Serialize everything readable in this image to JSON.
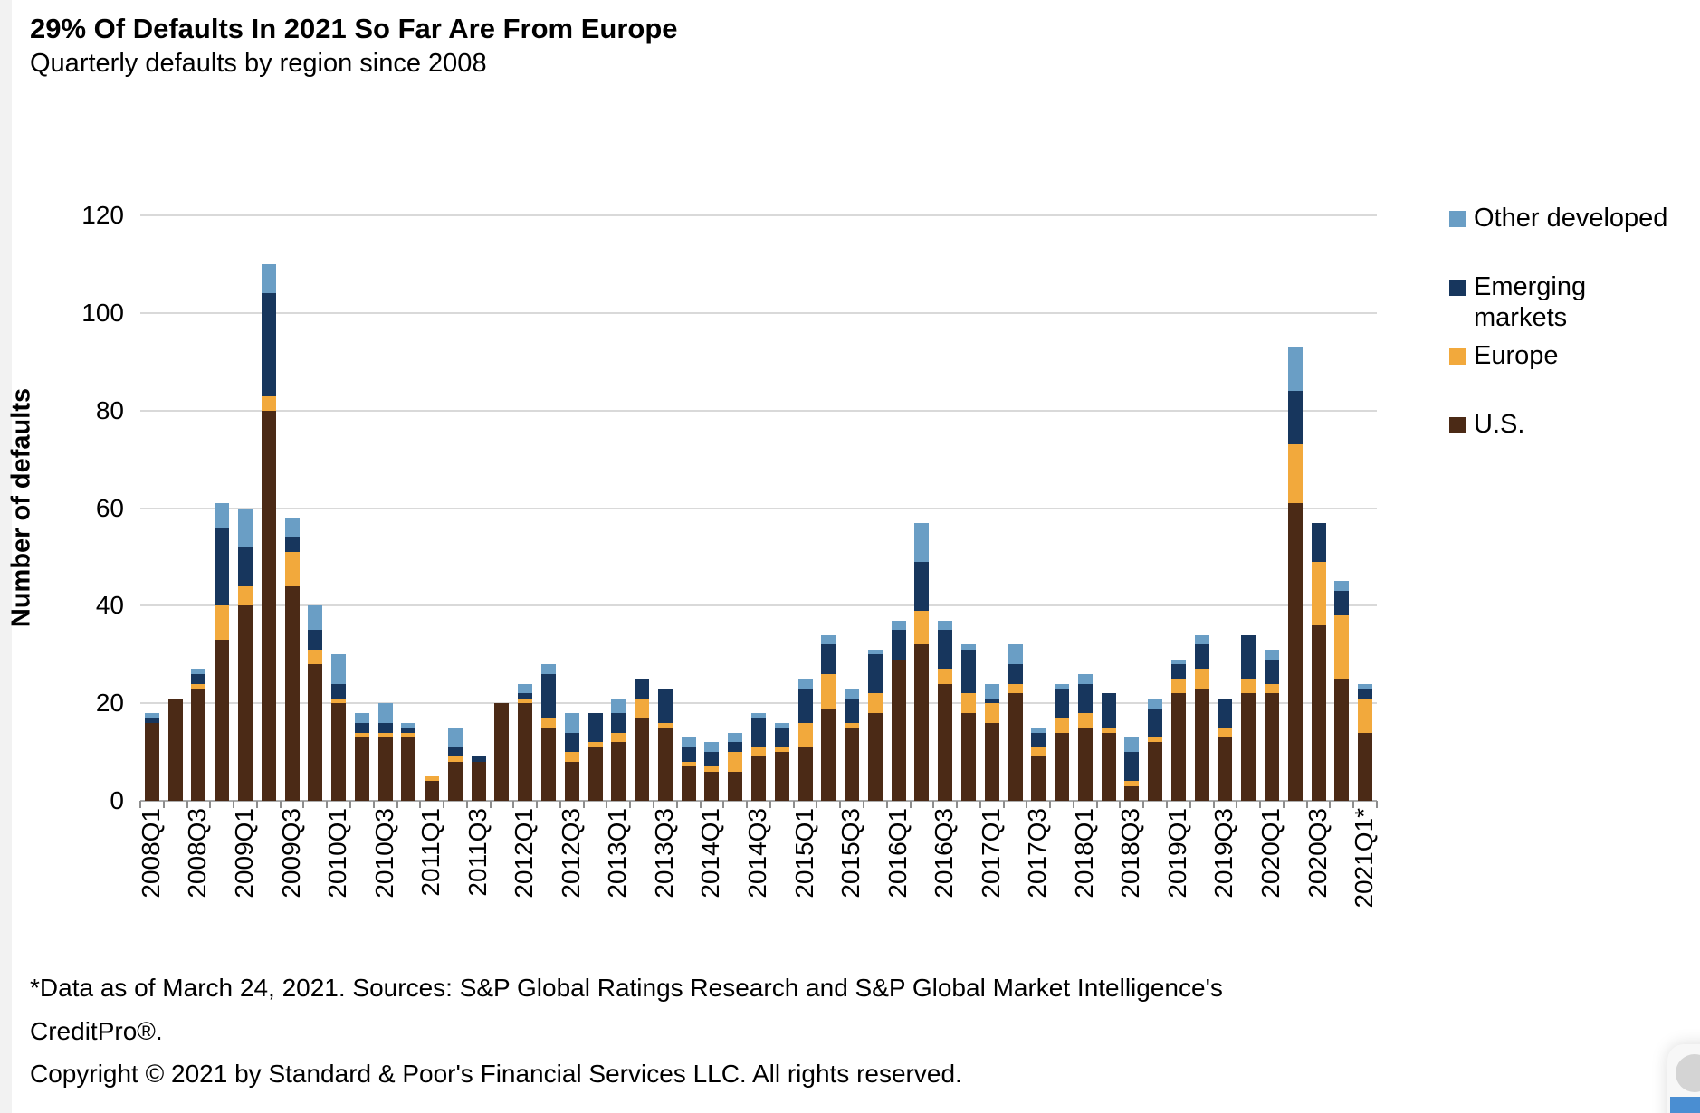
{
  "header": {
    "title": "29% Of Defaults In 2021 So Far Are From Europe",
    "subtitle": "Quarterly defaults by region since 2008"
  },
  "chart_data": {
    "type": "bar",
    "stacked": true,
    "title": "29% Of Defaults In 2021 So Far Are From Europe",
    "subtitle": "Quarterly defaults by region since 2008",
    "xlabel": "",
    "ylabel": "Number of defaults",
    "ylim": [
      0,
      120
    ],
    "yticks": [
      0,
      20,
      40,
      60,
      80,
      100,
      120
    ],
    "grid": "horizontal",
    "legend_position": "right",
    "label_every": 2,
    "categories": [
      "2008Q1",
      "2008Q2",
      "2008Q3",
      "2008Q4",
      "2009Q1",
      "2009Q2",
      "2009Q3",
      "2009Q4",
      "2010Q1",
      "2010Q2",
      "2010Q3",
      "2010Q4",
      "2011Q1",
      "2011Q2",
      "2011Q3",
      "2011Q4",
      "2012Q1",
      "2012Q2",
      "2012Q3",
      "2012Q4",
      "2013Q1",
      "2013Q2",
      "2013Q3",
      "2013Q4",
      "2014Q1",
      "2014Q2",
      "2014Q3",
      "2014Q4",
      "2015Q1",
      "2015Q2",
      "2015Q3",
      "2015Q4",
      "2016Q1",
      "2016Q2",
      "2016Q3",
      "2016Q4",
      "2017Q1",
      "2017Q2",
      "2017Q3",
      "2017Q4",
      "2018Q1",
      "2018Q2",
      "2018Q3",
      "2018Q4",
      "2019Q1",
      "2019Q2",
      "2019Q3",
      "2019Q4",
      "2020Q1",
      "2020Q2",
      "2020Q3",
      "2020Q4",
      "2021Q1*"
    ],
    "series": [
      {
        "name": "U.S.",
        "color": "#4B2A16",
        "values": [
          16,
          21,
          23,
          33,
          40,
          80,
          44,
          28,
          20,
          13,
          13,
          13,
          4,
          8,
          8,
          20,
          20,
          15,
          8,
          11,
          12,
          17,
          15,
          7,
          6,
          6,
          9,
          10,
          11,
          19,
          15,
          18,
          29,
          32,
          24,
          18,
          16,
          22,
          9,
          14,
          15,
          14,
          3,
          12,
          22,
          23,
          13,
          22,
          22,
          61,
          36,
          25,
          14
        ]
      },
      {
        "name": "Europe",
        "color": "#F2A93C",
        "values": [
          0,
          0,
          1,
          7,
          4,
          3,
          7,
          3,
          1,
          1,
          1,
          1,
          1,
          1,
          0,
          0,
          1,
          2,
          2,
          1,
          2,
          4,
          1,
          1,
          1,
          4,
          2,
          1,
          5,
          7,
          1,
          4,
          0,
          7,
          3,
          4,
          4,
          2,
          2,
          3,
          3,
          1,
          1,
          1,
          3,
          4,
          2,
          3,
          2,
          12,
          13,
          13,
          7
        ]
      },
      {
        "name": "Emerging markets",
        "color": "#17365D",
        "values": [
          1,
          0,
          2,
          16,
          8,
          21,
          3,
          4,
          3,
          2,
          2,
          1,
          0,
          2,
          1,
          0,
          1,
          9,
          4,
          6,
          4,
          4,
          7,
          3,
          3,
          2,
          6,
          4,
          7,
          6,
          5,
          8,
          6,
          10,
          8,
          9,
          1,
          4,
          3,
          6,
          6,
          7,
          6,
          6,
          3,
          5,
          6,
          9,
          5,
          11,
          8,
          5,
          2
        ]
      },
      {
        "name": "Other developed",
        "color": "#6A9EC5",
        "values": [
          1,
          0,
          1,
          5,
          8,
          6,
          4,
          5,
          6,
          2,
          4,
          1,
          0,
          4,
          0,
          0,
          2,
          2,
          4,
          0,
          3,
          0,
          0,
          2,
          2,
          2,
          1,
          1,
          2,
          2,
          2,
          1,
          2,
          8,
          2,
          1,
          3,
          4,
          1,
          1,
          2,
          0,
          3,
          2,
          1,
          2,
          0,
          0,
          2,
          9,
          0,
          2,
          1
        ]
      }
    ]
  },
  "y_axis": {
    "title": "Number of defaults"
  },
  "legend": {
    "items": [
      {
        "label": "Other developed",
        "color": "#6A9EC5"
      },
      {
        "label": "Emerging\nmarkets",
        "color": "#17365D"
      },
      {
        "label": "Europe",
        "color": "#F2A93C"
      },
      {
        "label": "U.S.",
        "color": "#4B2A16"
      }
    ]
  },
  "footer": {
    "line1": "*Data as of March 24, 2021. Sources: S&P Global Ratings Research and S&P Global Market Intelligence's",
    "line2": "CreditPro®.",
    "line3": "Copyright © 2021 by Standard & Poor's Financial Services LLC. All rights reserved."
  }
}
